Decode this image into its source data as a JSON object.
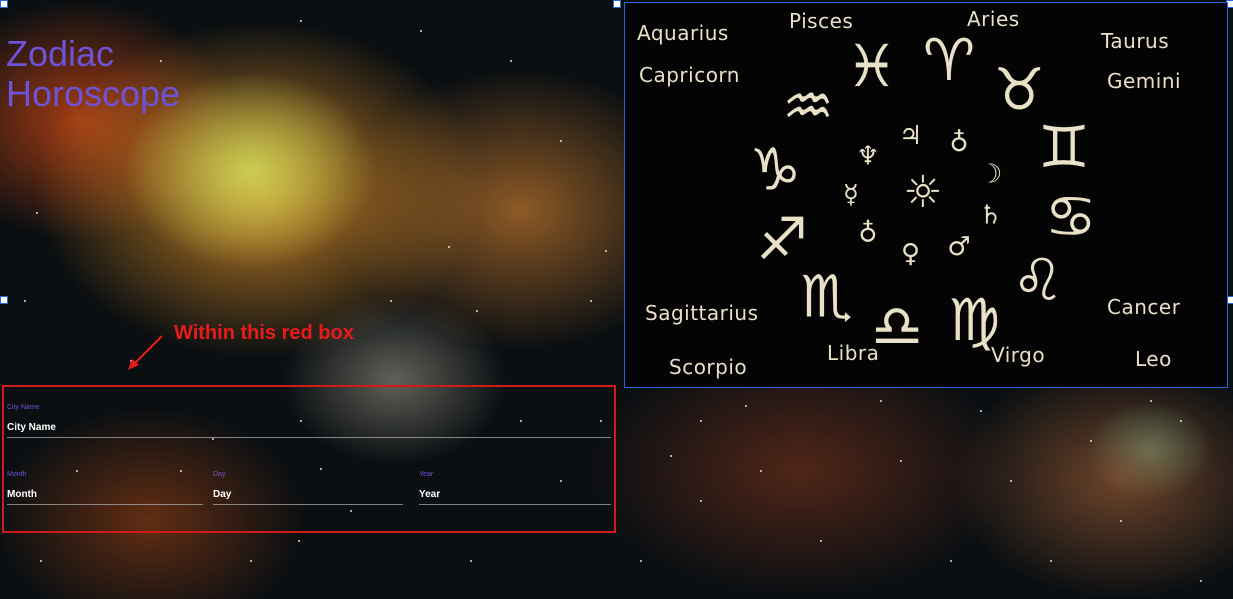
{
  "app": {
    "title_line1": "Zodiac",
    "title_line2": "Horoscope"
  },
  "zodiac_image": {
    "signs": {
      "aquarius": "Aquarius",
      "pisces": "Pisces",
      "aries": "Aries",
      "taurus": "Taurus",
      "capricorn": "Capricorn",
      "gemini": "Gemini",
      "sagittarius": "Sagittarius",
      "cancer": "Cancer",
      "scorpio": "Scorpio",
      "libra": "Libra",
      "virgo": "Virgo",
      "leo": "Leo"
    },
    "wheel_glyphs": [
      "♓",
      "♈",
      "♉",
      "♊",
      "♋",
      "♌",
      "♍",
      "♎",
      "♏",
      "♐",
      "♑",
      "♒"
    ],
    "planet_glyphs": [
      "♃",
      "♁",
      "☽",
      "♄",
      "♂",
      "♀",
      "♁",
      "☿",
      "♆",
      "☼"
    ],
    "text_color": "#e9e0c8"
  },
  "annotation": {
    "text": "Within this red box",
    "color": "#e81b1b"
  },
  "form": {
    "city": {
      "label": "City Name",
      "placeholder": "City Name"
    },
    "month": {
      "label": "Month",
      "placeholder": "Month"
    },
    "day": {
      "label": "Day",
      "placeholder": "Day"
    },
    "year": {
      "label": "Year",
      "placeholder": "Year"
    }
  },
  "colors": {
    "title": "#6f52d8",
    "selection_border": "#2b63d9",
    "red_box": "#d11a1a"
  }
}
